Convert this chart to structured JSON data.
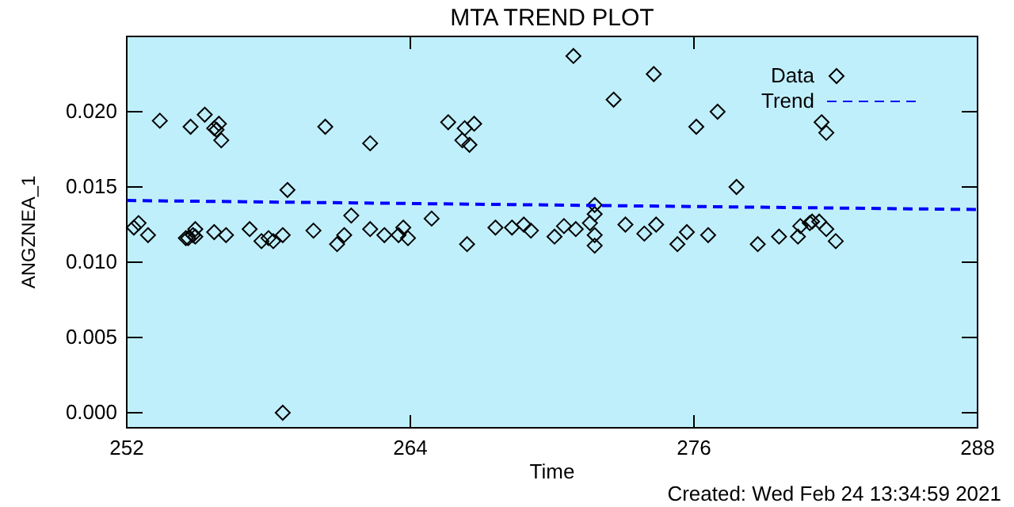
{
  "chart_data": {
    "type": "scatter",
    "title": "MTA TREND PLOT",
    "xlabel": "Time",
    "ylabel": "ANGZNEA_1",
    "annotations": [
      "Created: Wed Feb 24 13:34:59 2021"
    ],
    "xlim": [
      252,
      288
    ],
    "xticks": [
      252,
      264,
      276,
      288
    ],
    "ylim": [
      -0.001,
      0.025
    ],
    "yticks": [
      {
        "value": 0,
        "label": "0.000"
      },
      {
        "value": 0.005,
        "label": "0.005"
      },
      {
        "value": 0.01,
        "label": "0.010"
      },
      {
        "value": 0.015,
        "label": "0.015"
      },
      {
        "value": 0.02,
        "label": "0.020"
      }
    ],
    "legend": "top right",
    "marker": "diamond",
    "series": [
      {
        "name": "Data",
        "color": "#000000",
        "x": [
          252.3,
          252.5,
          252.9,
          253.4,
          254.5,
          254.6,
          254.7,
          254.8,
          254.9,
          254.9,
          255.3,
          255.7,
          255.7,
          255.9,
          255.8,
          256.0,
          256.2,
          257.2,
          257.7,
          258.0,
          258.2,
          258.6,
          258.6,
          258.8,
          259.9,
          260.4,
          260.9,
          261.2,
          261.5,
          262.3,
          262.3,
          262.9,
          263.5,
          263.7,
          263.9,
          264.9,
          265.6,
          266.4,
          266.3,
          266.7,
          266.2,
          266.5,
          267.6,
          268.3,
          268.8,
          269.1,
          270.1,
          270.5,
          271.0,
          270.9,
          271.6,
          271.8,
          271.8,
          271.8,
          271.8,
          272.6,
          273.1,
          273.9,
          274.3,
          274.4,
          275.3,
          275.7,
          276.1,
          276.6,
          277.0,
          277.8,
          278.7,
          279.6,
          280.4,
          280.5,
          280.9,
          281.0,
          281.3,
          281.4,
          281.6,
          281.6,
          282.0
        ],
        "values": [
          0.0123,
          0.0126,
          0.0118,
          0.0194,
          0.0116,
          0.0116,
          0.019,
          0.0118,
          0.0122,
          0.0117,
          0.0198,
          0.012,
          0.0189,
          0.0192,
          0.0188,
          0.0181,
          0.0118,
          0.0122,
          0.0114,
          0.0116,
          0.0114,
          0.0118,
          0.0,
          0.0148,
          0.0121,
          0.019,
          0.0112,
          0.0118,
          0.0131,
          0.0179,
          0.0122,
          0.0118,
          0.0118,
          0.0123,
          0.0116,
          0.0129,
          0.0193,
          0.0112,
          0.0189,
          0.0192,
          0.0181,
          0.0178,
          0.0123,
          0.0123,
          0.0125,
          0.0121,
          0.0117,
          0.0124,
          0.0122,
          0.0237,
          0.0126,
          0.0138,
          0.0132,
          0.0118,
          0.0111,
          0.0208,
          0.0125,
          0.0119,
          0.0225,
          0.0125,
          0.0112,
          0.012,
          0.019,
          0.0118,
          0.02,
          0.015,
          0.0112,
          0.0117,
          0.0117,
          0.0124,
          0.0126,
          0.0127,
          0.0127,
          0.0193,
          0.0186,
          0.0122,
          0.0114
        ]
      },
      {
        "name": "Trend",
        "type": "line",
        "color": "#0000ff",
        "marker": "none",
        "line_style": "dashed",
        "x": [
          252,
          288
        ],
        "values": [
          0.0141,
          0.0135
        ]
      }
    ]
  }
}
